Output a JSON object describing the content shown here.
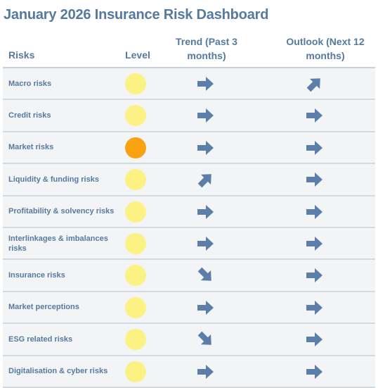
{
  "title": "January 2026 Insurance Risk Dashboard",
  "headers": {
    "risks": "Risks",
    "level": "Level",
    "trend": "Trend (Past 3 months)",
    "outlook": "Outlook (Next 12 months)"
  },
  "colors": {
    "text": "#5679a0",
    "arrow": "#5b7fa8",
    "level_yellow": "#fbf283",
    "level_orange": "#f9a20f",
    "row_background": "#f3f4f6",
    "row_separator": "#d3d9e1"
  },
  "direction_legend": {
    "right": "stable",
    "up-right": "increasing",
    "down-right": "decreasing"
  },
  "rows": [
    {
      "label": "Macro risks",
      "level": "yellow",
      "trend": "right",
      "outlook": "up-right"
    },
    {
      "label": "Credit risks",
      "level": "yellow",
      "trend": "right",
      "outlook": "right"
    },
    {
      "label": "Market risks",
      "level": "orange",
      "trend": "right",
      "outlook": "right"
    },
    {
      "label": "Liquidity & funding risks",
      "level": "yellow",
      "trend": "up-right",
      "outlook": "right"
    },
    {
      "label": "Profitability & solvency risks",
      "level": "yellow",
      "trend": "right",
      "outlook": "right"
    },
    {
      "label": "Interlinkages & imbalances risks",
      "level": "yellow",
      "trend": "right",
      "outlook": "right"
    },
    {
      "label": "Insurance risks",
      "level": "yellow",
      "trend": "down-right",
      "outlook": "right"
    },
    {
      "label": "Market perceptions",
      "level": "yellow",
      "trend": "right",
      "outlook": "right"
    },
    {
      "label": "ESG related risks",
      "level": "yellow",
      "trend": "down-right",
      "outlook": "right"
    },
    {
      "label": "Digitalisation & cyber risks",
      "level": "yellow",
      "trend": "right",
      "outlook": "right"
    }
  ]
}
